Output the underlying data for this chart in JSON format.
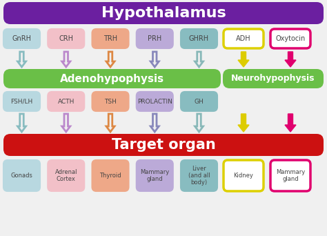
{
  "title": "Hypothalamus",
  "target_organ": "Target organ",
  "adenohypophysis": "Adenohypophysis",
  "neurohypophysis": "Neurohypophysis",
  "bg_color": "#f0f0f0",
  "hypo_bar_color": "#6b1fa0",
  "hypo_bar_text": "#ffffff",
  "green_bar_color": "#6abf47",
  "green_bar_text": "#ffffff",
  "red_bar_color": "#cc1111",
  "red_bar_text": "#ffffff",
  "hormone_boxes_top": [
    {
      "label": "GnRH",
      "bg": "#b8d8e0",
      "border": "#b8d8e0",
      "text": "#444444"
    },
    {
      "label": "CRH",
      "bg": "#f2c0c8",
      "border": "#f2c0c8",
      "text": "#444444"
    },
    {
      "label": "TRH",
      "bg": "#eea888",
      "border": "#eea888",
      "text": "#444444"
    },
    {
      "label": "PRH",
      "bg": "#bbaad8",
      "border": "#bbaad8",
      "text": "#444444"
    },
    {
      "label": "GHRH",
      "bg": "#88bcc0",
      "border": "#88bcc0",
      "text": "#444444"
    }
  ],
  "hormone_boxes_neuro_top": [
    {
      "label": "ADH",
      "bg": "#ffffff",
      "border": "#ddd000",
      "text": "#444444"
    },
    {
      "label": "Oxytocin",
      "bg": "#ffffff",
      "border": "#e0006e",
      "text": "#444444"
    }
  ],
  "arrow_colors_top": [
    "#88bcc0",
    "#bb88cc",
    "#dd8844",
    "#8888bb",
    "#88b8b8"
  ],
  "arrow_colors_neuro_top": [
    "#ddcc00",
    "#e0006e"
  ],
  "hormone_boxes_mid": [
    {
      "label": "FSH/LH",
      "bg": "#b8d8e0",
      "border": "#b8d8e0",
      "text": "#444444"
    },
    {
      "label": "ACTH",
      "bg": "#f2c0c8",
      "border": "#f2c0c8",
      "text": "#444444"
    },
    {
      "label": "TSH",
      "bg": "#eea888",
      "border": "#eea888",
      "text": "#444444"
    },
    {
      "label": "PROLACTIN",
      "bg": "#bbaad8",
      "border": "#bbaad8",
      "text": "#444444"
    },
    {
      "label": "GH",
      "bg": "#88bcc0",
      "border": "#88bcc0",
      "text": "#444444"
    }
  ],
  "arrow_colors_mid": [
    "#88bcc0",
    "#bb88cc",
    "#dd8844",
    "#8888bb",
    "#88b8b8"
  ],
  "arrow_colors_neuro_bot": [
    "#ddcc00",
    "#e0006e"
  ],
  "target_boxes": [
    {
      "label": "Gonads",
      "bg": "#b8d8e0",
      "border": "#b8d8e0",
      "text": "#444444"
    },
    {
      "label": "Adrenal\nCortex",
      "bg": "#f2c0c8",
      "border": "#f2c0c8",
      "text": "#444444"
    },
    {
      "label": "Thyroid",
      "bg": "#eea888",
      "border": "#eea888",
      "text": "#444444"
    },
    {
      "label": "Mammary\ngland",
      "bg": "#bbaad8",
      "border": "#bbaad8",
      "text": "#444444"
    },
    {
      "label": "Liver\n(and all\nbody)",
      "bg": "#88bcc0",
      "border": "#88bcc0",
      "text": "#444444"
    }
  ],
  "target_boxes_neuro": [
    {
      "label": "Kidney",
      "bg": "#ffffff",
      "border": "#ddd000",
      "text": "#444444"
    },
    {
      "label": "Mammary\ngland",
      "bg": "#ffffff",
      "border": "#e0006e",
      "text": "#444444"
    }
  ],
  "figsize": [
    4.74,
    3.42
  ],
  "dpi": 100
}
